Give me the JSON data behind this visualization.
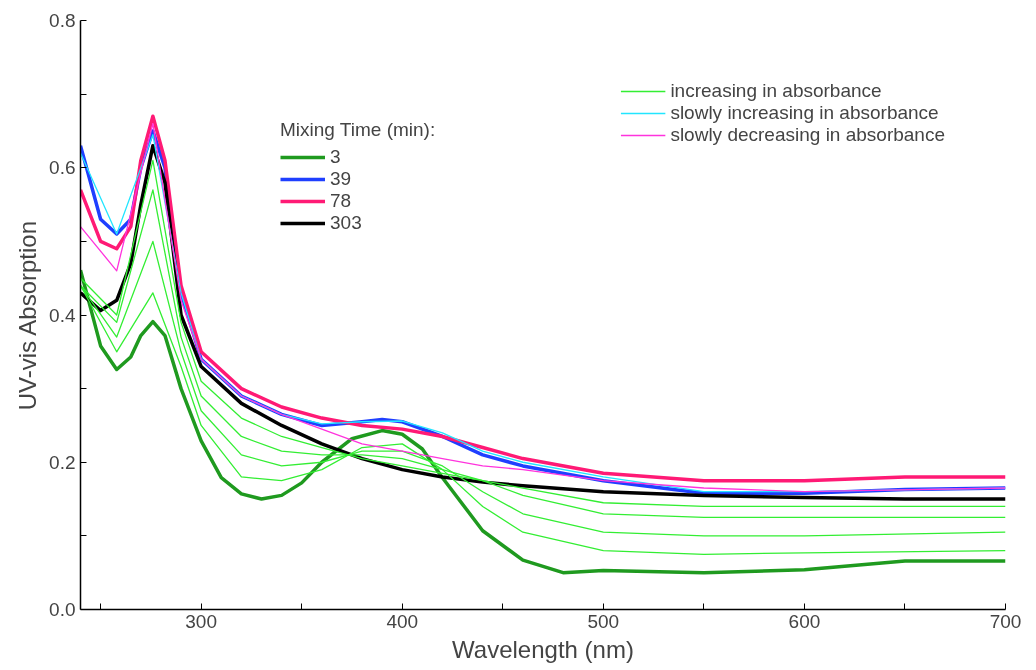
{
  "chart_data": {
    "type": "line",
    "xlabel": "Wavelength (nm)",
    "ylabel": "UV-vis Absorption",
    "legend_title": "Mixing Time (min):",
    "legend": "top right",
    "grid": false,
    "marker": "none",
    "line_style": "solid",
    "xlim": [
      240,
      700
    ],
    "xticks": [
      {
        "value": 250,
        "label": null
      },
      300,
      {
        "value": 350,
        "label": null
      },
      400,
      {
        "value": 450,
        "label": null
      },
      500,
      {
        "value": 550,
        "label": null
      },
      600,
      {
        "value": 650,
        "label": null
      },
      700
    ],
    "ylim": [
      0,
      0.8
    ],
    "yticks": [
      {
        "value": 0,
        "label": "0.0"
      },
      {
        "value": 0.1,
        "label": null
      },
      0.2,
      {
        "value": 0.3,
        "label": null
      },
      0.4,
      {
        "value": 0.5,
        "label": null
      },
      0.6,
      {
        "value": 0.7,
        "label": null
      },
      0.8
    ],
    "x": [
      240,
      258,
      276,
      290,
      300,
      320,
      340,
      360,
      380,
      400,
      420,
      440,
      460,
      500,
      550,
      600,
      700
    ],
    "series": [
      {
        "name": "increasing in absorbance",
        "color": "#33ee33",
        "values": [
          0.44,
          0.35,
          0.43,
          0.33,
          0.25,
          0.18,
          0.175,
          0.19,
          0.22,
          0.225,
          0.19,
          0.14,
          0.105,
          0.08,
          0.075,
          0.077,
          0.08
        ]
      },
      {
        "color": "#33ee33",
        "values": [
          0.44,
          0.37,
          0.5,
          0.35,
          0.27,
          0.21,
          0.195,
          0.2,
          0.215,
          0.215,
          0.195,
          0.16,
          0.13,
          0.105,
          0.1,
          0.1,
          0.105
        ]
      },
      {
        "color": "#33ee33",
        "values": [
          0.44,
          0.39,
          0.57,
          0.37,
          0.29,
          0.235,
          0.215,
          0.21,
          0.21,
          0.205,
          0.19,
          0.175,
          0.155,
          0.13,
          0.125,
          0.125,
          0.125
        ]
      },
      {
        "color": "#33ee33",
        "values": [
          0.45,
          0.4,
          0.61,
          0.39,
          0.31,
          0.26,
          0.235,
          0.22,
          0.205,
          0.195,
          0.185,
          0.175,
          0.165,
          0.145,
          0.14,
          0.14,
          0.14
        ]
      },
      {
        "name": "slowly increasing in absorbance",
        "color": "#22e5ff",
        "values": [
          0.62,
          0.51,
          0.645,
          0.43,
          0.34,
          0.29,
          0.265,
          0.252,
          0.255,
          0.256,
          0.24,
          0.215,
          0.2,
          0.18,
          0.16,
          0.16,
          0.165
        ]
      },
      {
        "name": "slowly decreasing in absorbance",
        "color": "#ff33dd",
        "values": [
          0.52,
          0.46,
          0.66,
          0.42,
          0.34,
          0.29,
          0.265,
          0.245,
          0.225,
          0.215,
          0.205,
          0.195,
          0.19,
          0.175,
          0.165,
          0.16,
          0.165
        ]
      },
      {
        "name": "3",
        "color": "#1f9a1f",
        "x": [
          240,
          250,
          258,
          265,
          270,
          276,
          282,
          290,
          300,
          310,
          320,
          330,
          340,
          350,
          360,
          375,
          390,
          400,
          410,
          420,
          440,
          460,
          480,
          500,
          550,
          600,
          650,
          700
        ],
        "values": [
          0.461,
          0.358,
          0.326,
          0.343,
          0.372,
          0.391,
          0.372,
          0.3,
          0.229,
          0.179,
          0.157,
          0.15,
          0.155,
          0.172,
          0.2,
          0.232,
          0.243,
          0.238,
          0.218,
          0.179,
          0.107,
          0.067,
          0.05,
          0.053,
          0.05,
          0.054,
          0.066,
          0.066
        ]
      },
      {
        "name": "39",
        "color": "#1f3fff",
        "x": [
          240,
          250,
          258,
          265,
          270,
          276,
          282,
          290,
          300,
          320,
          340,
          360,
          380,
          390,
          400,
          420,
          440,
          460,
          500,
          550,
          600,
          650,
          700
        ],
        "values": [
          0.63,
          0.53,
          0.51,
          0.53,
          0.6,
          0.65,
          0.6,
          0.43,
          0.34,
          0.29,
          0.265,
          0.25,
          0.255,
          0.258,
          0.255,
          0.235,
          0.21,
          0.195,
          0.175,
          0.158,
          0.158,
          0.163,
          0.165
        ]
      },
      {
        "name": "78",
        "color": "#ff1a75",
        "x": [
          240,
          250,
          258,
          265,
          270,
          276,
          282,
          290,
          300,
          320,
          340,
          360,
          380,
          400,
          420,
          440,
          460,
          500,
          550,
          600,
          650,
          700
        ],
        "values": [
          0.57,
          0.5,
          0.49,
          0.52,
          0.61,
          0.67,
          0.61,
          0.44,
          0.35,
          0.3,
          0.275,
          0.26,
          0.25,
          0.245,
          0.235,
          0.22,
          0.205,
          0.185,
          0.175,
          0.175,
          0.18,
          0.18
        ]
      },
      {
        "name": "303",
        "color": "#000000",
        "x": [
          240,
          250,
          258,
          265,
          270,
          276,
          282,
          290,
          300,
          320,
          340,
          360,
          380,
          400,
          420,
          440,
          460,
          500,
          550,
          600,
          650,
          700
        ],
        "values": [
          0.43,
          0.406,
          0.42,
          0.47,
          0.55,
          0.63,
          0.58,
          0.4,
          0.33,
          0.28,
          0.25,
          0.225,
          0.205,
          0.19,
          0.18,
          0.173,
          0.168,
          0.16,
          0.155,
          0.152,
          0.15,
          0.15
        ]
      }
    ]
  }
}
